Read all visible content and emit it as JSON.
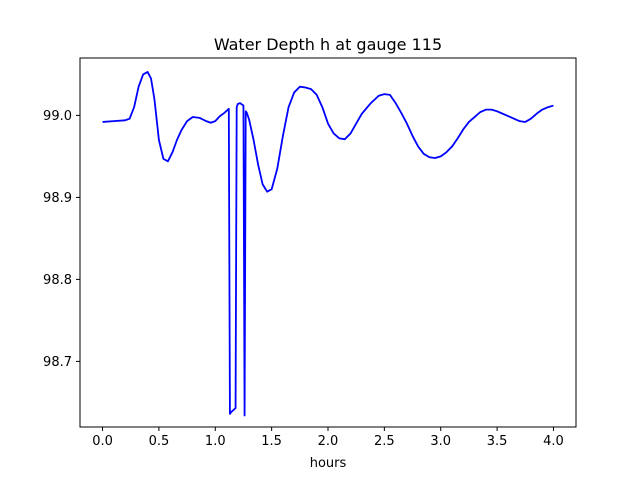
{
  "chart_data": {
    "type": "line",
    "title": "Water Depth h at gauge 115",
    "xlabel": "hours",
    "ylabel": "",
    "xlim": [
      -0.2,
      4.2
    ],
    "ylim": [
      98.62,
      99.07
    ],
    "xticks": [
      0.0,
      0.5,
      1.0,
      1.5,
      2.0,
      2.5,
      3.0,
      3.5,
      4.0
    ],
    "xtick_labels": [
      "0.0",
      "0.5",
      "1.0",
      "1.5",
      "2.0",
      "2.5",
      "3.0",
      "3.5",
      "4.0"
    ],
    "yticks": [
      98.7,
      98.8,
      98.9,
      99.0
    ],
    "ytick_labels": [
      "98.7",
      "98.8",
      "98.9",
      "99.0"
    ],
    "grid": false,
    "series": [
      {
        "color": "#0000ff",
        "x": [
          0.0,
          0.1,
          0.2,
          0.24,
          0.28,
          0.32,
          0.36,
          0.4,
          0.43,
          0.46,
          0.5,
          0.54,
          0.58,
          0.62,
          0.66,
          0.7,
          0.75,
          0.8,
          0.86,
          0.92,
          0.96,
          1.0,
          1.04,
          1.08,
          1.12,
          1.13,
          1.14,
          1.18,
          1.19,
          1.2,
          1.22,
          1.25,
          1.26,
          1.27,
          1.28,
          1.29,
          1.3,
          1.34,
          1.38,
          1.42,
          1.46,
          1.5,
          1.55,
          1.6,
          1.65,
          1.7,
          1.75,
          1.8,
          1.85,
          1.9,
          1.95,
          2.0,
          2.05,
          2.1,
          2.15,
          2.2,
          2.25,
          2.3,
          2.38,
          2.45,
          2.5,
          2.55,
          2.6,
          2.65,
          2.7,
          2.75,
          2.8,
          2.85,
          2.9,
          2.95,
          3.0,
          3.05,
          3.1,
          3.15,
          3.2,
          3.25,
          3.3,
          3.35,
          3.4,
          3.45,
          3.5,
          3.55,
          3.6,
          3.65,
          3.7,
          3.75,
          3.8,
          3.85,
          3.9,
          3.95,
          4.0
        ],
        "y": [
          98.992,
          98.993,
          98.994,
          98.996,
          99.01,
          99.035,
          99.05,
          99.053,
          99.045,
          99.02,
          98.97,
          98.947,
          98.944,
          98.955,
          98.97,
          98.982,
          98.993,
          98.998,
          98.997,
          98.993,
          98.991,
          98.993,
          98.999,
          99.003,
          99.008,
          98.636,
          98.638,
          98.643,
          99.01,
          99.014,
          99.015,
          99.012,
          98.634,
          99.005,
          99.003,
          98.999,
          98.995,
          98.97,
          98.94,
          98.916,
          98.907,
          98.91,
          98.935,
          98.975,
          99.01,
          99.028,
          99.035,
          99.034,
          99.032,
          99.025,
          99.01,
          98.99,
          98.978,
          98.972,
          98.971,
          98.978,
          98.99,
          99.002,
          99.015,
          99.024,
          99.026,
          99.025,
          99.015,
          99.003,
          98.99,
          98.975,
          98.962,
          98.953,
          98.949,
          98.948,
          98.95,
          98.955,
          98.962,
          98.972,
          98.983,
          98.992,
          98.998,
          99.004,
          99.007,
          99.007,
          99.005,
          99.002,
          98.999,
          98.996,
          98.993,
          98.992,
          98.996,
          99.002,
          99.007,
          99.01,
          99.012
        ]
      }
    ]
  }
}
